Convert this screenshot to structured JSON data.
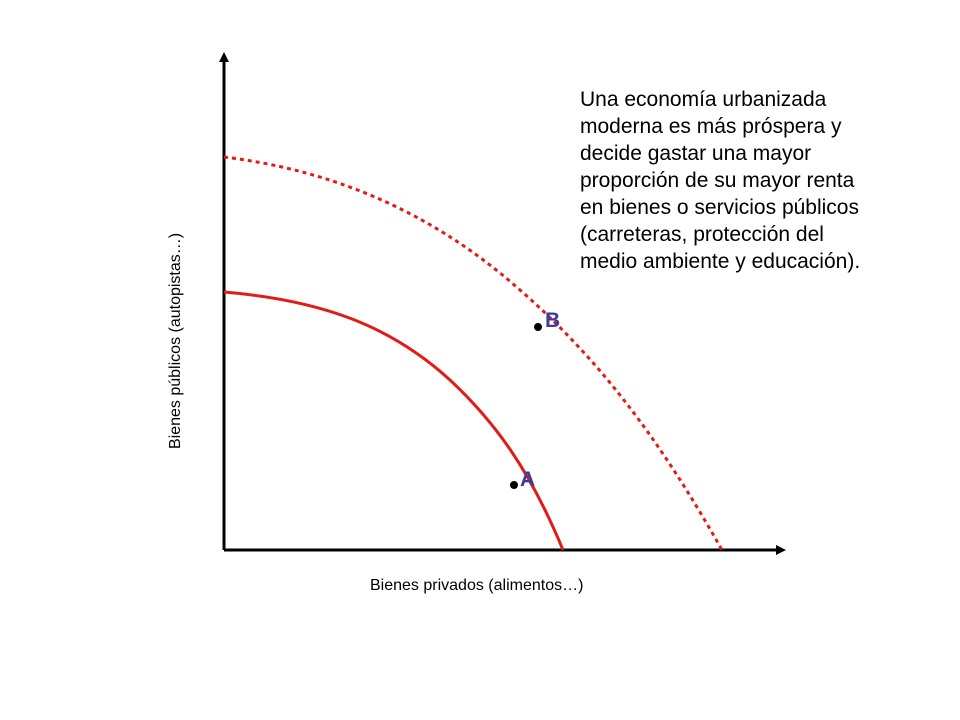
{
  "axes": {
    "y_label": "Bienes públicos (autopistas…)",
    "x_label": "Bienes privados (alimentos…)"
  },
  "points": {
    "a_label": "A",
    "b_label": "B"
  },
  "annotation": {
    "lines": [
      "Una economía urbanizada",
      "moderna es más próspera y",
      "decide gastar una mayor",
      "proporción de su mayor renta",
      "en bienes o servicios públicos",
      "(carreteras, protección del",
      "medio ambiente y educación)."
    ]
  },
  "colors": {
    "curve": "#e31b17",
    "point_label": "#3c3c9c",
    "axis": "#000000"
  }
}
